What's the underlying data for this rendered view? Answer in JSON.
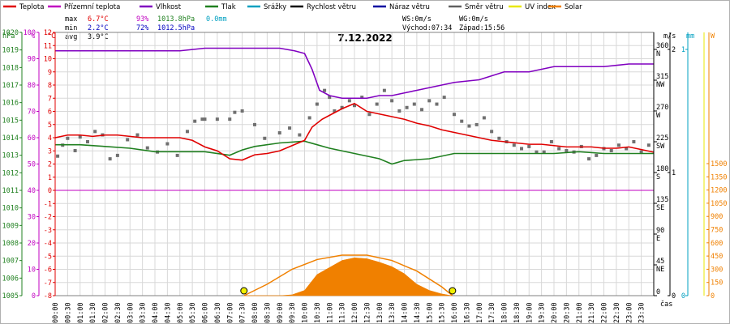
{
  "legend": [
    {
      "label": "Teplota",
      "color": "#e00000"
    },
    {
      "label": "Přízemní teplota",
      "color": "#c000c0"
    },
    {
      "label": "Vlhkost",
      "color": "#8000c0"
    },
    {
      "label": "Tlak",
      "color": "#208020"
    },
    {
      "label": "Srážky",
      "color": "#00a0c0"
    },
    {
      "label": "Rychlost větru",
      "color": "#000000"
    },
    {
      "label": "Náraz větru",
      "color": "#0000a0"
    },
    {
      "label": "Směr větru",
      "color": "#606060"
    },
    {
      "label": "UV index",
      "color": "#e8e800"
    },
    {
      "label": "Solar",
      "color": "#f08000"
    }
  ],
  "stats": {
    "max": {
      "label": "max",
      "temp": "6.7°C",
      "hum": "93%",
      "press": "1013.8hPa",
      "rain": "0.0mm"
    },
    "min": {
      "label": "min",
      "temp": "2.2°C",
      "hum": "72%",
      "press": "1012.5hPa"
    },
    "avg": {
      "label": "avg",
      "temp": "3.9°C"
    }
  },
  "wind_info": {
    "ws": "WS:0m/s",
    "wg": "WG:0m/s",
    "sunrise": "Východ:07:34",
    "sunset": "Západ:15:56"
  },
  "chart_data": {
    "type": "line",
    "title": "7.12.2022",
    "x_label": "čas",
    "x_ticks": [
      "00:00",
      "00:30",
      "01:00",
      "01:30",
      "02:00",
      "02:30",
      "03:00",
      "03:30",
      "04:00",
      "04:30",
      "05:00",
      "05:30",
      "06:00",
      "06:30",
      "07:00",
      "07:30",
      "08:00",
      "08:30",
      "09:00",
      "09:30",
      "10:00",
      "10:30",
      "11:00",
      "11:30",
      "12:00",
      "12:30",
      "13:00",
      "13:30",
      "14:00",
      "14:30",
      "15:00",
      "15:30",
      "16:00",
      "16:30",
      "17:00",
      "17:30",
      "18:00",
      "18:30",
      "19:00",
      "19:30",
      "20:00",
      "20:30",
      "21:00",
      "21:30",
      "22:00",
      "22:30",
      "23:00",
      "23:30"
    ],
    "axes": {
      "pressure": {
        "label": "hPa",
        "ticks": [
          1005,
          1006,
          1007,
          1008,
          1009,
          1010,
          1011,
          1012,
          1013,
          1014,
          1015,
          1016,
          1017,
          1018,
          1019,
          1020
        ],
        "color": "#208020"
      },
      "humidity": {
        "label": "%",
        "ticks": [
          0,
          10,
          20,
          30,
          40,
          50,
          60,
          70,
          80,
          90,
          100
        ],
        "color": "#c000c0"
      },
      "temperature": {
        "label": "°C",
        "ticks": [
          -8,
          -7,
          -6,
          -5,
          -4,
          -3,
          -2,
          -1,
          0,
          1,
          2,
          3,
          4,
          5,
          6,
          7,
          8,
          9,
          10,
          11,
          12
        ],
        "color": "#e00000"
      },
      "wind_dir": {
        "ticks": [
          "0",
          "45 NE",
          "90 E",
          "135 SE",
          "180 S",
          "225 SW",
          "270 W",
          "315 NW",
          "360 N"
        ],
        "color": "#404040"
      },
      "wind_speed": {
        "label": "m/s",
        "ticks": [
          0,
          1,
          2
        ],
        "color": "#000000"
      },
      "rain": {
        "label": "mm",
        "ticks": [
          0,
          1
        ],
        "color": "#00a0c0"
      },
      "solar": {
        "label": "W",
        "ticks": [
          0,
          150,
          300,
          450,
          600,
          750,
          900,
          1050,
          1200,
          1350,
          1500
        ],
        "color": "#f08000"
      }
    },
    "series": [
      {
        "name": "Teplota",
        "color": "#e00000",
        "x": [
          0,
          0.5,
          1,
          1.5,
          2,
          2.5,
          3,
          3.5,
          4,
          4.5,
          5,
          5.5,
          6,
          6.5,
          7,
          7.5,
          8,
          8.5,
          9,
          9.5,
          10,
          10.3,
          10.7,
          11,
          11.5,
          12,
          12.5,
          13,
          13.5,
          14,
          14.5,
          15,
          15.5,
          16,
          16.5,
          17,
          17.5,
          18,
          18.5,
          19,
          19.5,
          20,
          20.5,
          21,
          21.5,
          22,
          22.5,
          23,
          23.5,
          24
        ],
        "y": [
          4.0,
          4.2,
          4.2,
          4.1,
          4.2,
          4.2,
          4.1,
          4.0,
          4.0,
          4.0,
          4.0,
          3.8,
          3.3,
          3.0,
          2.4,
          2.3,
          2.7,
          2.8,
          3.0,
          3.4,
          3.8,
          4.8,
          5.4,
          5.7,
          6.2,
          6.6,
          6.0,
          5.8,
          5.6,
          5.4,
          5.1,
          4.9,
          4.6,
          4.4,
          4.2,
          4.0,
          3.8,
          3.7,
          3.6,
          3.5,
          3.5,
          3.4,
          3.3,
          3.3,
          3.3,
          3.2,
          3.2,
          3.3,
          3.1,
          2.9
        ]
      },
      {
        "name": "Vlhkost",
        "color": "#8000c0",
        "x": [
          0,
          1,
          2,
          3,
          4,
          5,
          6,
          7,
          8,
          9,
          9.6,
          10,
          10.3,
          10.6,
          11,
          11.5,
          12,
          12.5,
          13,
          13.5,
          14,
          14.5,
          15,
          16,
          17,
          18,
          19,
          20,
          21,
          22,
          23,
          24
        ],
        "y": [
          93,
          93,
          93,
          93,
          93,
          93,
          94,
          94,
          94,
          94,
          93,
          92,
          86,
          78,
          76,
          75,
          75,
          75,
          76,
          76,
          77,
          78,
          79,
          81,
          82,
          85,
          85,
          87,
          87,
          87,
          88,
          88
        ]
      },
      {
        "name": "Tlak",
        "color": "#208020",
        "x": [
          0,
          1,
          2,
          3,
          4,
          5,
          6,
          7,
          7.5,
          8,
          9,
          10,
          11,
          12,
          13,
          13.5,
          14,
          15,
          16,
          17,
          18,
          19,
          20,
          21,
          22,
          23,
          24
        ],
        "y": [
          1013.6,
          1013.6,
          1013.5,
          1013.4,
          1013.2,
          1013.2,
          1013.2,
          1013.0,
          1013.3,
          1013.5,
          1013.7,
          1013.8,
          1013.4,
          1013.1,
          1012.8,
          1012.5,
          1012.7,
          1012.8,
          1013.1,
          1013.1,
          1013.1,
          1013.1,
          1013.1,
          1013.2,
          1013.1,
          1013.1,
          1013.1
        ]
      },
      {
        "name": "Solar",
        "color": "#f08000",
        "x": [
          7.6,
          8,
          8.5,
          9,
          9.5,
          10,
          10.5,
          11,
          11.5,
          12,
          12.5,
          13,
          13.5,
          14,
          14.5,
          15,
          15.5,
          15.9
        ],
        "y": [
          0,
          0,
          0,
          0,
          10,
          60,
          240,
          320,
          400,
          430,
          420,
          380,
          330,
          250,
          130,
          60,
          20,
          0
        ]
      }
    ],
    "solar_envelope": {
      "x": [
        7.57,
        8.5,
        9.5,
        10.5,
        11.5,
        12.5,
        13.5,
        14.5,
        15.5,
        15.93
      ],
      "y": [
        0,
        130,
        300,
        410,
        460,
        460,
        400,
        280,
        100,
        0
      ]
    },
    "wind_direction": {
      "x": [
        0.1,
        0.3,
        0.5,
        0.8,
        1.0,
        1.3,
        1.6,
        1.9,
        2.2,
        2.5,
        2.9,
        3.3,
        3.7,
        4.1,
        4.5,
        4.9,
        5.3,
        5.6,
        5.9,
        6.0,
        6.5,
        7.0,
        7.2,
        7.5,
        8.0,
        8.4,
        9.0,
        9.4,
        9.8,
        10.2,
        10.5,
        10.8,
        11.0,
        11.2,
        11.5,
        11.8,
        12.0,
        12.3,
        12.6,
        12.9,
        13.2,
        13.5,
        13.8,
        14.1,
        14.4,
        14.7,
        15.0,
        15.3,
        15.6,
        16.0,
        16.3,
        16.6,
        16.9,
        17.2,
        17.5,
        17.8,
        18.1,
        18.4,
        18.7,
        19.0,
        19.3,
        19.6,
        19.9,
        20.2,
        20.5,
        20.8,
        21.1,
        21.4,
        21.7,
        22.0,
        22.3,
        22.6,
        22.9,
        23.2,
        23.5,
        23.8
      ],
      "y": [
        204,
        220,
        230,
        212,
        232,
        225,
        240,
        235,
        200,
        205,
        228,
        235,
        216,
        210,
        222,
        205,
        240,
        255,
        258,
        258,
        258,
        258,
        268,
        270,
        250,
        230,
        238,
        245,
        235,
        260,
        280,
        300,
        290,
        270,
        275,
        285,
        278,
        290,
        265,
        280,
        300,
        285,
        270,
        275,
        280,
        272,
        285,
        280,
        290,
        265,
        255,
        248,
        250,
        260,
        240,
        230,
        225,
        220,
        215,
        218,
        210,
        210,
        225,
        215,
        212,
        210,
        218,
        200,
        205,
        215,
        212,
        220,
        215,
        225,
        210,
        220
      ]
    }
  }
}
